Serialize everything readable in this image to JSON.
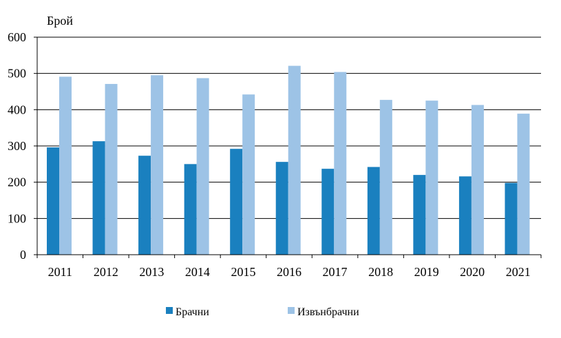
{
  "chart_data": {
    "type": "bar",
    "ylabel": "Брой",
    "xlabel": "",
    "ylim": [
      0,
      600
    ],
    "yticks": [
      "0",
      "100",
      "200",
      "300",
      "400",
      "500",
      "600"
    ],
    "categories": [
      "2011",
      "2012",
      "2013",
      "2014",
      "2015",
      "2016",
      "2017",
      "2018",
      "2019",
      "2020",
      "2021"
    ],
    "series": [
      {
        "name": "Брачни",
        "color": "#1a80bf",
        "values": [
          296,
          313,
          273,
          250,
          292,
          256,
          237,
          242,
          220,
          216,
          198
        ]
      },
      {
        "name": "Извънбрачни",
        "color": "#9dc3e6",
        "values": [
          491,
          471,
          495,
          487,
          442,
          521,
          504,
          427,
          425,
          413,
          389
        ]
      }
    ],
    "grid": true,
    "legend_position": "bottom"
  }
}
